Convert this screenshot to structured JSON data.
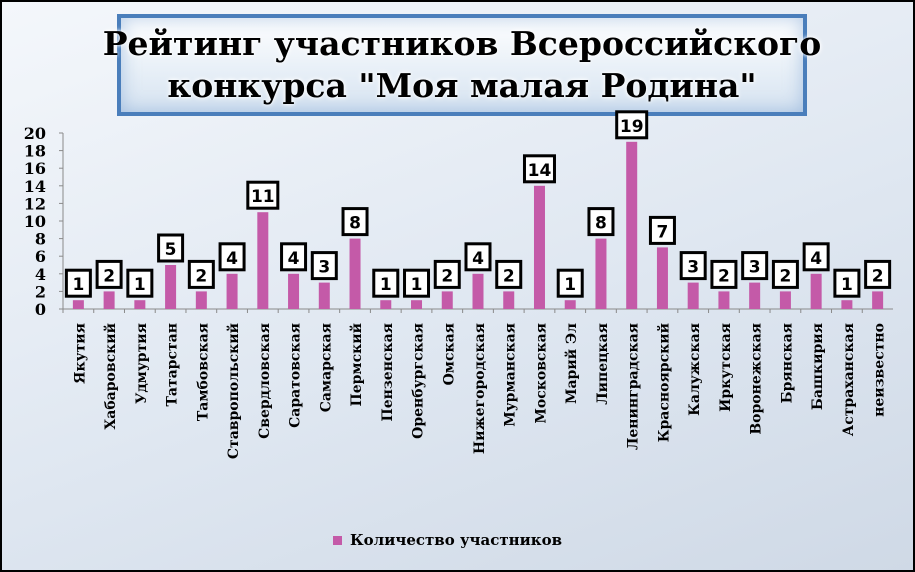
{
  "title_lines": [
    "Рейтинг участников Всероссийского",
    "конкурса \"Моя малая Родина\""
  ],
  "chart_data": {
    "type": "bar",
    "categories": [
      "Якутия",
      "Хабаровский",
      "Удмуртия",
      "Татарстан",
      "Тамбовская",
      "Ставропольский",
      "Свердловская",
      "Саратовская",
      "Самарская",
      "Пермский",
      "Пензенская",
      "Оренбургская",
      "Омская",
      "Нижегородская",
      "Мурманская",
      "Московская",
      "Марий Эл",
      "Липецкая",
      "Ленинградская",
      "Красноярский",
      "Калужская",
      "Иркутская",
      "Воронежская",
      "Брянская",
      "Башкирия",
      "Астраханская",
      "неизвестно"
    ],
    "series": [
      {
        "name": "Количество участников",
        "values": [
          1,
          2,
          1,
          5,
          2,
          4,
          11,
          4,
          3,
          8,
          1,
          1,
          2,
          4,
          2,
          14,
          1,
          8,
          19,
          7,
          3,
          2,
          3,
          2,
          4,
          1,
          2
        ]
      }
    ],
    "ylim": [
      0,
      20
    ],
    "yticks": [
      0,
      2,
      4,
      6,
      8,
      10,
      12,
      14,
      16,
      18,
      20
    ],
    "grid": false,
    "legend_position": "bottom",
    "bar_color": "#c45aa8"
  }
}
